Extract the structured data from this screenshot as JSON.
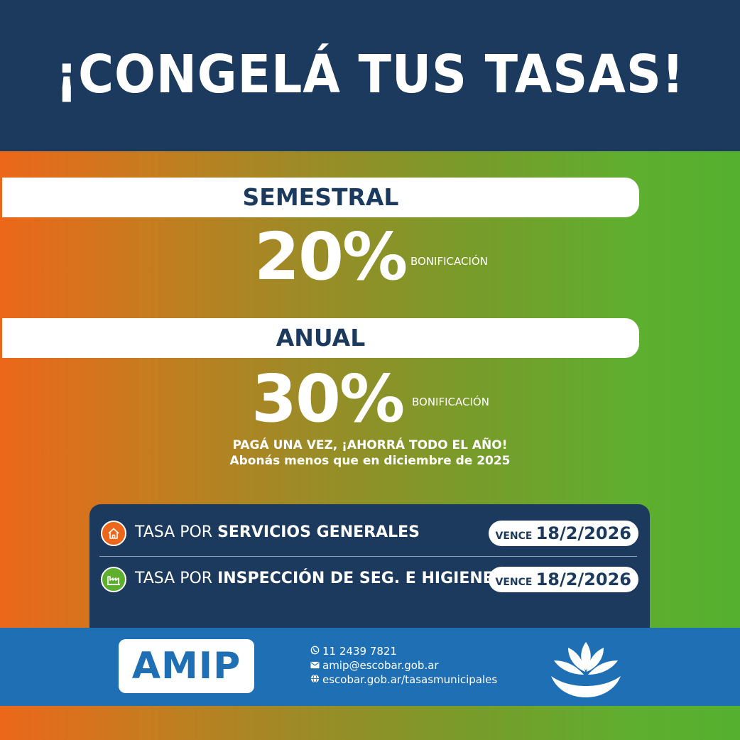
{
  "headline": "¡CONGELÁ TUS TASAS!",
  "plans": [
    {
      "label": "SEMESTRAL",
      "discount": "20%",
      "discount_label": "BONIFICACIÓN"
    },
    {
      "label": "ANUAL",
      "discount": "30%",
      "discount_label": "BONIFICACIÓN"
    }
  ],
  "note": {
    "line1": "PAGÁ UNA VEZ, ¡AHORRÁ TODO EL AÑO!",
    "line2": "Abonás menos que en diciembre de 2025"
  },
  "taxes": [
    {
      "prefix": "TASA POR ",
      "name": "SERVICIOS GENERALES",
      "due_label": "VENCE",
      "due_date": "18/2/2026",
      "icon": "house-icon",
      "icon_color": "#ec671a"
    },
    {
      "prefix": "TASA POR ",
      "name": "INSPECCIÓN DE SEG. E HIGIENE",
      "due_label": "VENCE",
      "due_date": "18/2/2026",
      "icon": "factory-icon",
      "icon_color": "#5fae2f"
    }
  ],
  "footer": {
    "logo_text": "AMIP",
    "phone": "11 2439 7821",
    "email": "amip@escobar.gob.ar",
    "website": "escobar.gob.ar/tasasmunicipales",
    "phone_icon": "whatsapp-icon",
    "email_icon": "envelope-icon",
    "web_icon": "globe-icon"
  },
  "colors": {
    "navy": "#1b3a5e",
    "orange": "#ec671a",
    "green": "#5fae2f",
    "footer_blue": "#1f6fb5"
  }
}
